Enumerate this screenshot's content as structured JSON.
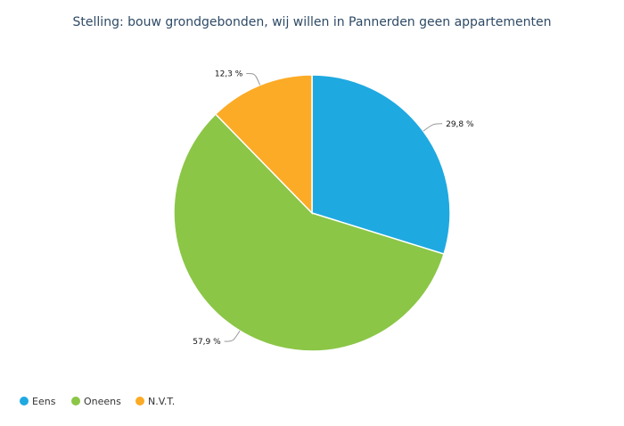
{
  "chart_data": {
    "type": "pie",
    "title": "Stelling: bouw grondgebonden, wij willen in Pannerden geen appartementen",
    "slices": [
      {
        "name": "Eens",
        "value": 29.8,
        "label": "29,8 %",
        "color": "#1fa9e1"
      },
      {
        "name": "Oneens",
        "value": 57.9,
        "label": "57,9 %",
        "color": "#8bc646"
      },
      {
        "name": "N.V.T.",
        "value": 12.3,
        "label": "12,3 %",
        "color": "#fcab26"
      }
    ],
    "legend": {
      "position": "bottom-left"
    }
  }
}
